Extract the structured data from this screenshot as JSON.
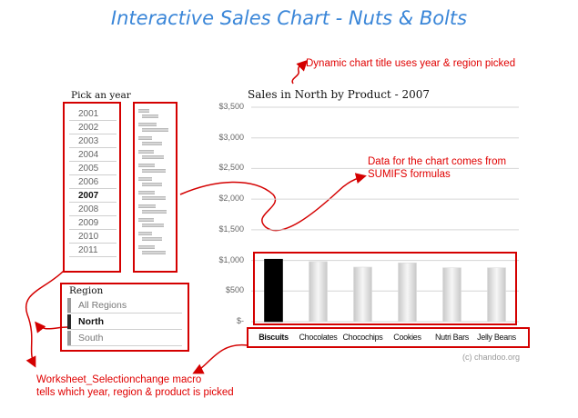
{
  "title": "Interactive Sales Chart - Nuts & Bolts",
  "annotations": {
    "dynamic_title": "Dynamic chart title uses year & region picked",
    "data_source_line1": "Data for the chart comes from",
    "data_source_line2": "SUMIFS formulas",
    "macro_line1": "Worksheet_Selectionchange macro",
    "macro_line2": "tells which year, region & product is picked"
  },
  "year_picker": {
    "label": "Pick an year",
    "years": [
      "2001",
      "2002",
      "2003",
      "2004",
      "2005",
      "2006",
      "2007",
      "2008",
      "2009",
      "2010",
      "2011"
    ],
    "selected": "2007",
    "sparkline_levels": [
      0.55,
      0.9,
      0.7,
      0.75,
      0.8,
      0.7,
      0.8,
      0.85,
      0.75,
      0.7,
      0.8
    ]
  },
  "region_picker": {
    "label": "Region",
    "items": [
      "All Regions",
      "North",
      "South"
    ],
    "selected": "North"
  },
  "chart_data": {
    "type": "bar",
    "title": "Sales in North by Product - 2007",
    "categories": [
      "Biscuits",
      "Chocolates",
      "Chocochips",
      "Cookies",
      "Nutri Bars",
      "Jelly Beans"
    ],
    "values": [
      1020,
      980,
      890,
      960,
      880,
      880
    ],
    "selected_category": "Biscuits",
    "ylim": [
      0,
      3500
    ],
    "yticks": [
      0,
      500,
      1000,
      1500,
      2000,
      2500,
      3000,
      3500
    ],
    "ytick_labels": [
      "$-",
      "$500",
      "$1,000",
      "$1,500",
      "$2,000",
      "$2,500",
      "$3,000",
      "$3,500"
    ],
    "grid": true,
    "colors": {
      "selected": "#000000",
      "other": "#d8d8d8"
    }
  },
  "credit": "(c) chandoo.org"
}
